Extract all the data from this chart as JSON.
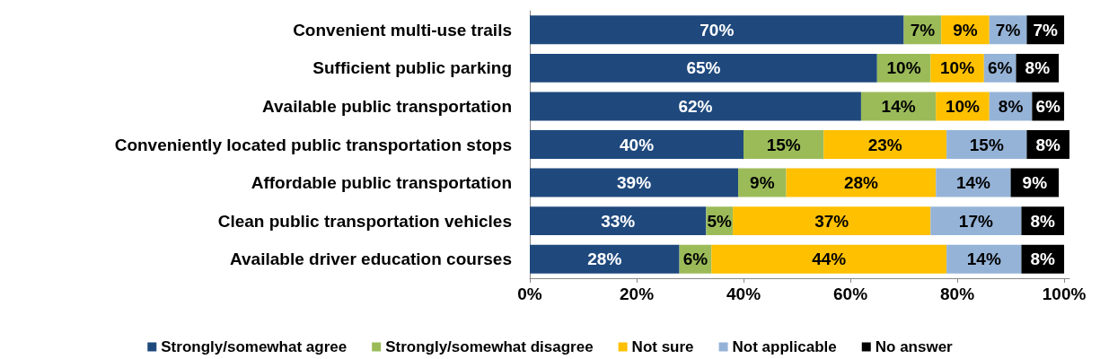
{
  "chart_data": {
    "type": "bar",
    "orientation": "horizontal",
    "stacked": true,
    "categories": [
      "Convenient multi-use trails",
      "Sufficient public parking",
      "Available public transportation",
      "Conveniently located public transportation stops",
      "Affordable public transportation",
      "Clean public transportation vehicles",
      "Available driver education courses"
    ],
    "series": [
      {
        "name": "Strongly/somewhat agree",
        "color": "#1f497d",
        "values": [
          70,
          65,
          62,
          40,
          39,
          33,
          28
        ],
        "value_labels": [
          "70%",
          "65%",
          "62%",
          "40%",
          "39%",
          "33%",
          "28%"
        ]
      },
      {
        "name": "Strongly/somewhat disagree",
        "color": "#9bbb59",
        "values": [
          7,
          10,
          14,
          15,
          9,
          5,
          6
        ],
        "value_labels": [
          "7%",
          "10%",
          "14%",
          "15%",
          "9%",
          "5%",
          "6%"
        ]
      },
      {
        "name": "Not sure",
        "color": "#ffc000",
        "values": [
          9,
          10,
          10,
          23,
          28,
          37,
          44
        ],
        "value_labels": [
          "9%",
          "10%",
          "10%",
          "23%",
          "28%",
          "37%",
          "44%"
        ]
      },
      {
        "name": "Not applicable",
        "color": "#95b3d7",
        "values": [
          7,
          6,
          8,
          15,
          14,
          17,
          14
        ],
        "value_labels": [
          "7%",
          "6%",
          "8%",
          "15%",
          "14%",
          "17%",
          "14%"
        ]
      },
      {
        "name": "No answer",
        "color": "#000000",
        "values": [
          7,
          8,
          6,
          8,
          9,
          8,
          8
        ],
        "value_labels": [
          "7%",
          "8%",
          "6%",
          "8%",
          "9%",
          "8%",
          "8%"
        ]
      }
    ],
    "xlim": [
      0,
      101
    ],
    "xticks": [
      {
        "value": 0,
        "label": "0%"
      },
      {
        "value": 20,
        "label": "20%"
      },
      {
        "value": 40,
        "label": "40%"
      },
      {
        "value": 60,
        "label": "60%"
      },
      {
        "value": 80,
        "label": "80%"
      },
      {
        "value": 100,
        "label": "100%"
      }
    ],
    "grid": false,
    "legend": "bottom"
  }
}
